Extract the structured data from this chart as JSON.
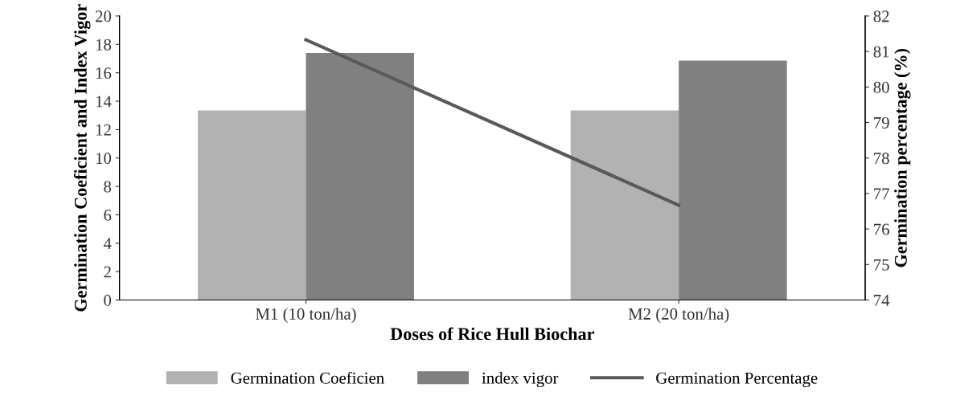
{
  "chart_data": {
    "type": "bar",
    "xlabel": "Doses of Rice Hull Biochar",
    "ylabel": "Germination Coeficient and Index Vigor",
    "y2label": "Germination percentage (%)",
    "categories": [
      "M1 (10 ton/ha)",
      "M2 (20 ton/ha)"
    ],
    "series": [
      {
        "name": "Germination Coeficien",
        "color": "#b2b2b2",
        "values": [
          13.35,
          13.35
        ]
      },
      {
        "name": "index vigor",
        "color": "#808080",
        "values": [
          17.4,
          16.85
        ]
      },
      {
        "name": "Germination Percentage",
        "type": "line",
        "axis": "y2",
        "color": "#595959",
        "values": [
          81.33,
          76.67
        ]
      }
    ],
    "ylim": [
      0,
      20
    ],
    "yticks": [
      0,
      2,
      4,
      6,
      8,
      10,
      12,
      14,
      16,
      18,
      20
    ],
    "y2lim": [
      74,
      82
    ],
    "y2ticks": [
      74,
      75,
      76,
      77,
      78,
      79,
      80,
      81,
      82
    ],
    "grid": false,
    "legend": "bottom",
    "marker": "none"
  }
}
